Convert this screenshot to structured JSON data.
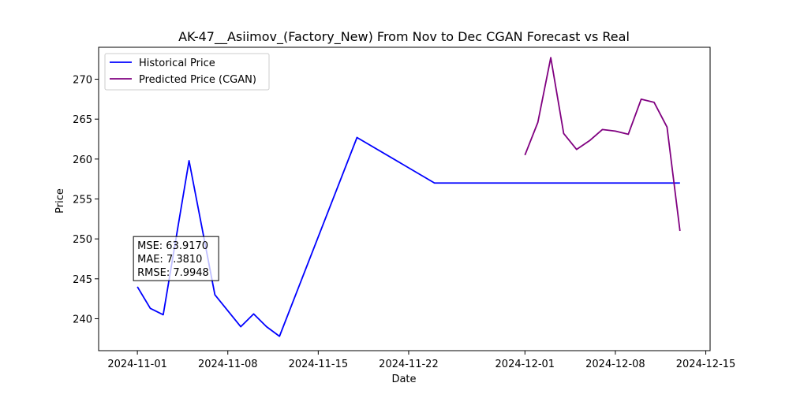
{
  "chart_data": {
    "type": "line",
    "title": "AK-47__Asiimov_(Factory_New) From Nov to Dec CGAN Forecast vs Real",
    "xlabel": "Date",
    "ylabel": "Price",
    "xlim": [
      "2024-10-29T00:00:00",
      "2024-12-15T08:00:00"
    ],
    "ylim": [
      236.0,
      274.0
    ],
    "x_ticks": [
      "2024-11-01",
      "2024-11-08",
      "2024-11-15",
      "2024-11-22",
      "2024-12-01",
      "2024-12-08",
      "2024-12-15"
    ],
    "y_ticks": [
      240,
      245,
      250,
      255,
      260,
      265,
      270
    ],
    "grid": false,
    "legend_position": "top-left",
    "series": [
      {
        "name": "Historical Price",
        "color": "#0000ff",
        "points": [
          {
            "x": "2024-11-01",
            "y": 244.0
          },
          {
            "x": "2024-11-02",
            "y": 241.3
          },
          {
            "x": "2024-11-03",
            "y": 240.5
          },
          {
            "x": "2024-11-05",
            "y": 259.8
          },
          {
            "x": "2024-11-07",
            "y": 243.0
          },
          {
            "x": "2024-11-09",
            "y": 239.0
          },
          {
            "x": "2024-11-10",
            "y": 240.6
          },
          {
            "x": "2024-11-11",
            "y": 239.0
          },
          {
            "x": "2024-11-12",
            "y": 237.8
          },
          {
            "x": "2024-11-18",
            "y": 262.7
          },
          {
            "x": "2024-11-24",
            "y": 257.0
          },
          {
            "x": "2024-12-13",
            "y": 257.0
          }
        ]
      },
      {
        "name": "Predicted Price (CGAN)",
        "color": "#800080",
        "points": [
          {
            "x": "2024-12-01",
            "y": 260.5
          },
          {
            "x": "2024-12-02",
            "y": 264.6
          },
          {
            "x": "2024-12-03",
            "y": 272.7
          },
          {
            "x": "2024-12-04",
            "y": 263.2
          },
          {
            "x": "2024-12-05",
            "y": 261.2
          },
          {
            "x": "2024-12-06",
            "y": 262.3
          },
          {
            "x": "2024-12-07",
            "y": 263.7
          },
          {
            "x": "2024-12-08",
            "y": 263.5
          },
          {
            "x": "2024-12-09",
            "y": 263.1
          },
          {
            "x": "2024-12-10",
            "y": 267.5
          },
          {
            "x": "2024-12-11",
            "y": 267.1
          },
          {
            "x": "2024-12-12",
            "y": 264.0
          },
          {
            "x": "2024-12-13",
            "y": 251.0
          }
        ]
      }
    ],
    "annotations": [
      {
        "line1": "MSE: 63.9170",
        "line2": "MAE: 7.3810",
        "line3": "RMSE: 7.9948",
        "x": "2024-11-01",
        "y": 250
      }
    ]
  }
}
